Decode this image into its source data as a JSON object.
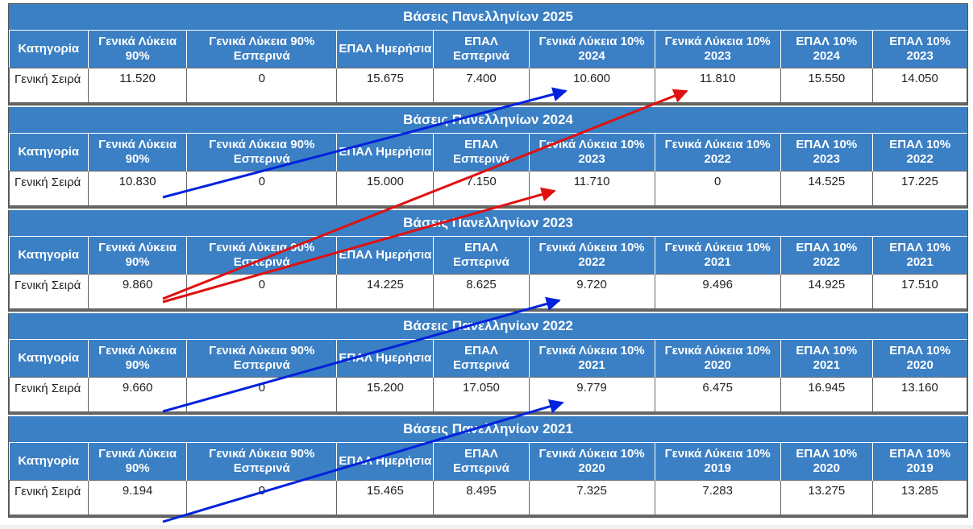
{
  "colors": {
    "header_bg": "#3b7fc4",
    "arrow_blue": "#0022dd",
    "arrow_red": "#e01010"
  },
  "blocks": [
    {
      "title": "Βάσεις Πανελληνίων 2025",
      "headers": [
        "Κατηγορία",
        "Γενικά Λύκεια 90%",
        "Γενικά Λύκεια 90% Εσπερινά",
        "ΕΠΑΛ Ημερήσια",
        "ΕΠΑΛ Εσπερινά",
        "Γενικά Λύκεια 10% 2024",
        "Γενικά Λύκεια 10% 2023",
        "ΕΠΑΛ 10% 2024",
        "ΕΠΑΛ 10% 2023"
      ],
      "row": [
        "Γενική Σειρά",
        "11.520",
        "0",
        "15.675",
        "7.400",
        "10.600",
        "11.810",
        "15.550",
        "14.050"
      ]
    },
    {
      "title": "Βάσεις Πανελληνίων 2024",
      "headers": [
        "Κατηγορία",
        "Γενικά Λύκεια 90%",
        "Γενικά Λύκεια 90% Εσπερινά",
        "ΕΠΑΛ Ημερήσια",
        "ΕΠΑΛ Εσπερινά",
        "Γενικά Λύκεια 10% 2023",
        "Γενικά Λύκεια 10% 2022",
        "ΕΠΑΛ 10% 2023",
        "ΕΠΑΛ 10% 2022"
      ],
      "row": [
        "Γενική Σειρά",
        "10.830",
        "0",
        "15.000",
        "7.150",
        "11.710",
        "0",
        "14.525",
        "17.225"
      ]
    },
    {
      "title": "Βάσεις Πανελληνίων 2023",
      "headers": [
        "Κατηγορία",
        "Γενικά Λύκεια 90%",
        "Γενικά Λύκεια 90% Εσπερινά",
        "ΕΠΑΛ Ημερήσια",
        "ΕΠΑΛ Εσπερινά",
        "Γενικά Λύκεια 10% 2022",
        "Γενικά Λύκεια 10% 2021",
        "ΕΠΑΛ 10% 2022",
        "ΕΠΑΛ 10% 2021"
      ],
      "row": [
        "Γενική Σειρά",
        "9.860",
        "0",
        "14.225",
        "8.625",
        "9.720",
        "9.496",
        "14.925",
        "17.510"
      ]
    },
    {
      "title": "Βάσεις Πανελληνίων 2022",
      "headers": [
        "Κατηγορία",
        "Γενικά Λύκεια 90%",
        "Γενικά Λύκεια 90% Εσπερινά",
        "ΕΠΑΛ Ημερήσια",
        "ΕΠΑΛ Εσπερινά",
        "Γενικά Λύκεια 10% 2021",
        "Γενικά Λύκεια 10% 2020",
        "ΕΠΑΛ 10% 2021",
        "ΕΠΑΛ 10% 2020"
      ],
      "row": [
        "Γενική Σειρά",
        "9.660",
        "0",
        "15.200",
        "17.050",
        "9.779",
        "6.475",
        "16.945",
        "13.160"
      ]
    },
    {
      "title": "Βάσεις Πανελληνίων 2021",
      "headers": [
        "Κατηγορία",
        "Γενικά Λύκεια 90%",
        "Γενικά Λύκεια 90% Εσπερινά",
        "ΕΠΑΛ Ημερήσια",
        "ΕΠΑΛ Εσπερινά",
        "Γενικά Λύκεια 10% 2020",
        "Γενικά Λύκεια 10% 2019",
        "ΕΠΑΛ 10% 2020",
        "ΕΠΑΛ 10% 2019"
      ],
      "row": [
        "Γενική Σειρά",
        "9.194",
        "0",
        "15.465",
        "8.495",
        "7.325",
        "7.283",
        "13.275",
        "13.285"
      ]
    }
  ]
}
